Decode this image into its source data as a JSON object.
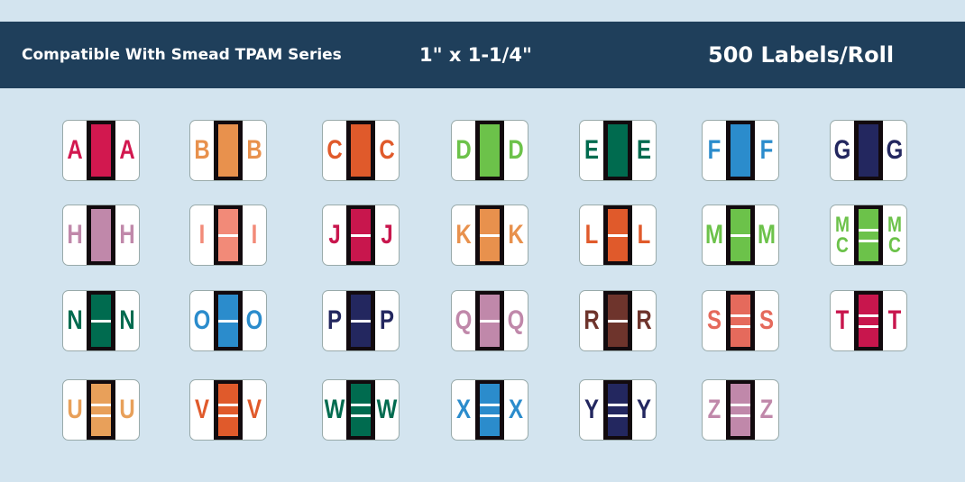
{
  "banner": {
    "compat": "Compatible With Smead TPAM Series",
    "size": "1\" x 1-1/4\"",
    "count": "500 Labels/Roll",
    "color": "#1f3f5b"
  },
  "labels": [
    {
      "text": "A",
      "color": "#d2184f",
      "bars": 0
    },
    {
      "text": "B",
      "color": "#e8914d",
      "bars": 0
    },
    {
      "text": "C",
      "color": "#e05a2b",
      "bars": 0
    },
    {
      "text": "D",
      "color": "#6cc24a",
      "bars": 0
    },
    {
      "text": "E",
      "color": "#006b4f",
      "bars": 0
    },
    {
      "text": "F",
      "color": "#2b8ccc",
      "bars": 0
    },
    {
      "text": "G",
      "color": "#23275f",
      "bars": 0
    },
    {
      "text": "H",
      "color": "#c088aa",
      "bars": 0
    },
    {
      "text": "I",
      "color": "#f28a78",
      "bars": 1
    },
    {
      "text": "J",
      "color": "#c8164d",
      "bars": 1
    },
    {
      "text": "K",
      "color": "#e8914d",
      "bars": 1
    },
    {
      "text": "L",
      "color": "#e05a2b",
      "bars": 1
    },
    {
      "text": "M",
      "color": "#6cc24a",
      "bars": 1
    },
    {
      "text": "MC",
      "color": "#6cc24a",
      "bars": 2
    },
    {
      "text": "N",
      "color": "#006b4f",
      "bars": 1
    },
    {
      "text": "O",
      "color": "#2b8ccc",
      "bars": 1
    },
    {
      "text": "P",
      "color": "#23275f",
      "bars": 1
    },
    {
      "text": "Q",
      "color": "#c088aa",
      "bars": 1
    },
    {
      "text": "R",
      "color": "#6e342c",
      "bars": 1
    },
    {
      "text": "S",
      "color": "#e56a5c",
      "bars": 2
    },
    {
      "text": "T",
      "color": "#c8164d",
      "bars": 2
    },
    {
      "text": "U",
      "color": "#e8a05a",
      "bars": 2
    },
    {
      "text": "V",
      "color": "#e05a2b",
      "bars": 2
    },
    {
      "text": "W",
      "color": "#006b4f",
      "bars": 2
    },
    {
      "text": "X",
      "color": "#2b8ccc",
      "bars": 2
    },
    {
      "text": "Y",
      "color": "#23275f",
      "bars": 2
    },
    {
      "text": "Z",
      "color": "#c088aa",
      "bars": 2
    }
  ]
}
